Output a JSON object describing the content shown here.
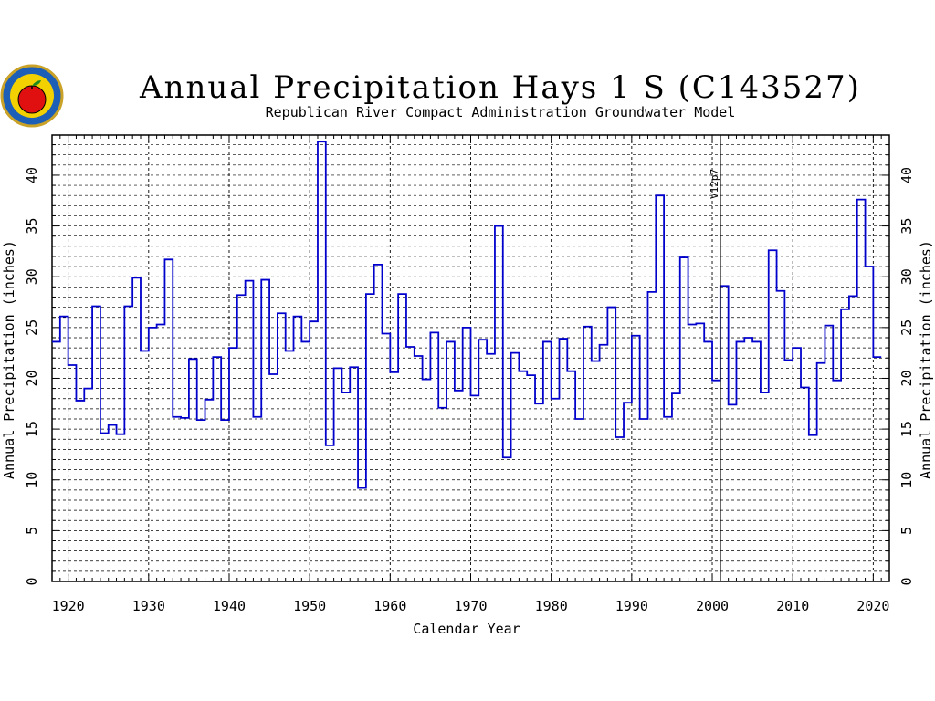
{
  "chart_data": {
    "type": "line",
    "step": true,
    "title": "Annual Precipitation Hays 1 S (C143527)",
    "subtitle": "Republican River Compact Administration Groundwater Model",
    "xlabel": "Calendar Year",
    "ylabel": "Annual Precipitation (inches)",
    "ylabel_right": "Annual Precipitation (inches)",
    "xlim": [
      1918,
      2022
    ],
    "ylim": [
      0,
      43.5
    ],
    "x_ticks": [
      1920,
      1930,
      1940,
      1950,
      1960,
      1970,
      1980,
      1990,
      2000,
      2010,
      2020
    ],
    "y_ticks": [
      0,
      5,
      10,
      15,
      20,
      25,
      30,
      35,
      40
    ],
    "grid": true,
    "annotation": {
      "label": "V12p7",
      "x": 2001
    },
    "line_color": "#0000cc",
    "series": [
      {
        "x": [
          1918,
          1919,
          1920,
          1921,
          1922,
          1923,
          1924,
          1925,
          1926,
          1927,
          1928,
          1929,
          1930,
          1931,
          1932,
          1933,
          1934,
          1935,
          1936,
          1937,
          1938,
          1939,
          1940,
          1941,
          1942,
          1943,
          1944,
          1945,
          1946,
          1947,
          1948,
          1949,
          1950,
          1951,
          1952,
          1953,
          1954,
          1955,
          1956,
          1957,
          1958,
          1959,
          1960,
          1961,
          1962,
          1963,
          1964,
          1965,
          1966,
          1967,
          1968,
          1969,
          1970,
          1971,
          1972,
          1973,
          1974,
          1975,
          1976,
          1977,
          1978,
          1979,
          1980,
          1981,
          1982,
          1983,
          1984,
          1985,
          1986,
          1987,
          1988,
          1989,
          1990,
          1991,
          1992,
          1993,
          1994,
          1995,
          1996,
          1997,
          1998,
          1999,
          2000,
          2001,
          2002,
          2003,
          2004,
          2005,
          2006,
          2007,
          2008,
          2009,
          2010,
          2011,
          2012,
          2013,
          2014,
          2015,
          2016,
          2017,
          2018,
          2019,
          2020
        ],
        "values": [
          23.6,
          26.1,
          21.3,
          17.8,
          19.0,
          27.1,
          14.6,
          15.4,
          14.5,
          27.1,
          29.9,
          22.7,
          25.0,
          25.3,
          31.7,
          16.2,
          16.1,
          21.9,
          15.9,
          17.9,
          22.1,
          15.9,
          23.0,
          28.2,
          29.6,
          16.2,
          29.7,
          20.4,
          26.4,
          22.7,
          26.1,
          23.6,
          25.6,
          43.3,
          13.4,
          21.0,
          18.6,
          21.1,
          9.2,
          28.3,
          31.2,
          24.4,
          20.6,
          28.3,
          23.1,
          22.2,
          19.9,
          24.5,
          17.1,
          23.6,
          18.8,
          25.0,
          18.3,
          23.8,
          22.4,
          35.0,
          12.2,
          22.5,
          20.7,
          20.3,
          17.5,
          23.6,
          18.0,
          23.9,
          20.7,
          16.0,
          25.1,
          21.7,
          23.3,
          27.0,
          14.2,
          17.6,
          24.2,
          16.0,
          28.5,
          38.0,
          16.2,
          18.5,
          31.9,
          25.3,
          25.4,
          23.6,
          19.8,
          29.1,
          17.4,
          23.6,
          24.0,
          23.6,
          18.6,
          32.6,
          28.6,
          21.8,
          23.0,
          19.1,
          14.4,
          21.5,
          25.2,
          19.8,
          26.8,
          28.1,
          37.6,
          31.0,
          22.1
        ]
      }
    ]
  }
}
